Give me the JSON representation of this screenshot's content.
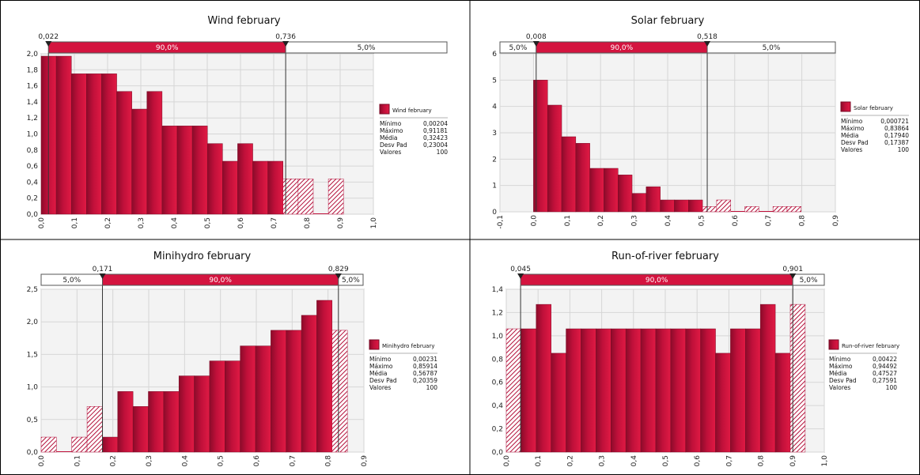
{
  "chart_data": [
    {
      "type": "bar",
      "title": "Wind february",
      "xlim": [
        0.0,
        1.0
      ],
      "ylim": [
        0.0,
        2.0
      ],
      "xticks": [
        "0,0",
        "0,1",
        "0,2",
        "0,3",
        "0,4",
        "0,5",
        "0,6",
        "0,7",
        "0,8",
        "0,9",
        "1,0"
      ],
      "yticks": [
        "0,0",
        "0,2",
        "0,4",
        "0,6",
        "0,8",
        "1,0",
        "1,2",
        "1,4",
        "1,6",
        "1,8",
        "2,0"
      ],
      "bin_width": 0.0455,
      "bins_start": 0.0,
      "values": [
        1.97,
        1.97,
        1.75,
        1.75,
        1.75,
        1.53,
        1.31,
        1.53,
        1.1,
        1.1,
        1.1,
        0.88,
        0.66,
        0.88,
        0.66,
        0.66,
        0.44,
        0.44,
        0.0,
        0.44
      ],
      "left_cut": "0,022",
      "right_cut": "0,736",
      "left_cut_value": 0.022,
      "right_cut_value": 0.736,
      "bands": [
        "90,0%",
        "5,0%"
      ],
      "legend": "Wind february",
      "stats": [
        [
          "Mínimo",
          "0,00204"
        ],
        [
          "Máximo",
          "0,91181"
        ],
        [
          "Média",
          "0,32423"
        ],
        [
          "Desv Pad",
          "0,23004"
        ],
        [
          "Valores",
          "100"
        ]
      ],
      "bar_color": "#c0103a"
    },
    {
      "type": "bar",
      "title": "Solar february",
      "xlim": [
        -0.1,
        0.9
      ],
      "ylim": [
        0,
        6
      ],
      "xticks": [
        "-0,1",
        "0,0",
        "0,1",
        "0,2",
        "0,3",
        "0,4",
        "0,5",
        "0,6",
        "0,7",
        "0,8",
        "0,9"
      ],
      "yticks": [
        "0",
        "1",
        "2",
        "3",
        "4",
        "5",
        "6"
      ],
      "bin_width": 0.042,
      "bins_start": 0.0,
      "values": [
        5.0,
        4.05,
        2.85,
        2.6,
        1.65,
        1.65,
        1.4,
        0.7,
        0.95,
        0.45,
        0.45,
        0.45,
        0.2,
        0.45,
        0.0,
        0.2,
        0.0,
        0.2,
        0.2
      ],
      "left_cut": "0,008",
      "right_cut": "0,518",
      "left_cut_value": 0.008,
      "right_cut_value": 0.518,
      "bands": [
        "5,0%",
        "90,0%",
        "5,0%"
      ],
      "legend": "Solar february",
      "stats": [
        [
          "Mínimo",
          "0,000721"
        ],
        [
          "Máximo",
          "0,83864"
        ],
        [
          "Média",
          "0,17940"
        ],
        [
          "Desv Pad",
          "0,17387"
        ],
        [
          "Valores",
          "100"
        ]
      ],
      "bar_color": "#c0103a"
    },
    {
      "type": "bar",
      "title": "Minihydro february",
      "xlim": [
        0.0,
        0.9
      ],
      "ylim": [
        0.0,
        2.5
      ],
      "xticks": [
        "0,0",
        "0,1",
        "0,2",
        "0,3",
        "0,4",
        "0,5",
        "0,6",
        "0,7",
        "0,8",
        "0,9"
      ],
      "yticks": [
        "0,0",
        "0,5",
        "1,0",
        "1,5",
        "2,0",
        "2,5"
      ],
      "bin_width": 0.0427,
      "bins_start": 0.0,
      "values": [
        0.23,
        0.0,
        0.23,
        0.7,
        0.23,
        0.93,
        0.7,
        0.93,
        0.93,
        1.17,
        1.17,
        1.4,
        1.4,
        1.63,
        1.63,
        1.87,
        1.87,
        2.1,
        2.33,
        1.87
      ],
      "left_cut": "0,171",
      "right_cut": "0,829",
      "left_cut_value": 0.171,
      "right_cut_value": 0.829,
      "bands": [
        "5,0%",
        "90,0%",
        "5,0%"
      ],
      "legend": "Minihydro february",
      "stats": [
        [
          "Mínimo",
          "0,00231"
        ],
        [
          "Máximo",
          "0,85914"
        ],
        [
          "Média",
          "0,56787"
        ],
        [
          "Desv Pad",
          "0,20359"
        ],
        [
          "Valores",
          "100"
        ]
      ],
      "bar_color": "#c0103a"
    },
    {
      "type": "bar",
      "title": "Run-of-river february",
      "xlim": [
        0.0,
        1.0
      ],
      "ylim": [
        0.0,
        1.4
      ],
      "xticks": [
        "0,0",
        "0,1",
        "0,2",
        "0,3",
        "0,4",
        "0,5",
        "0,6",
        "0,7",
        "0,8",
        "0,9",
        "1,0"
      ],
      "yticks": [
        "0,0",
        "0,2",
        "0,4",
        "0,6",
        "0,8",
        "1,0",
        "1,2",
        "1,4"
      ],
      "bin_width": 0.047,
      "bins_start": 0.0,
      "values": [
        1.06,
        1.06,
        1.27,
        0.85,
        1.06,
        1.06,
        1.06,
        1.06,
        1.06,
        1.06,
        1.06,
        1.06,
        1.06,
        1.06,
        0.85,
        1.06,
        1.06,
        1.27,
        0.85,
        1.27
      ],
      "left_cut": "0,045",
      "right_cut": "0,901",
      "left_cut_value": 0.045,
      "right_cut_value": 0.901,
      "bands": [
        "90,0%",
        "5,0%"
      ],
      "legend": "Run-of-river february",
      "stats": [
        [
          "Mínimo",
          "0,00422"
        ],
        [
          "Máximo",
          "0,94492"
        ],
        [
          "Média",
          "0,47527"
        ],
        [
          "Desv Pad",
          "0,27591"
        ],
        [
          "Valores",
          "100"
        ]
      ],
      "bar_color": "#c0103a"
    }
  ]
}
